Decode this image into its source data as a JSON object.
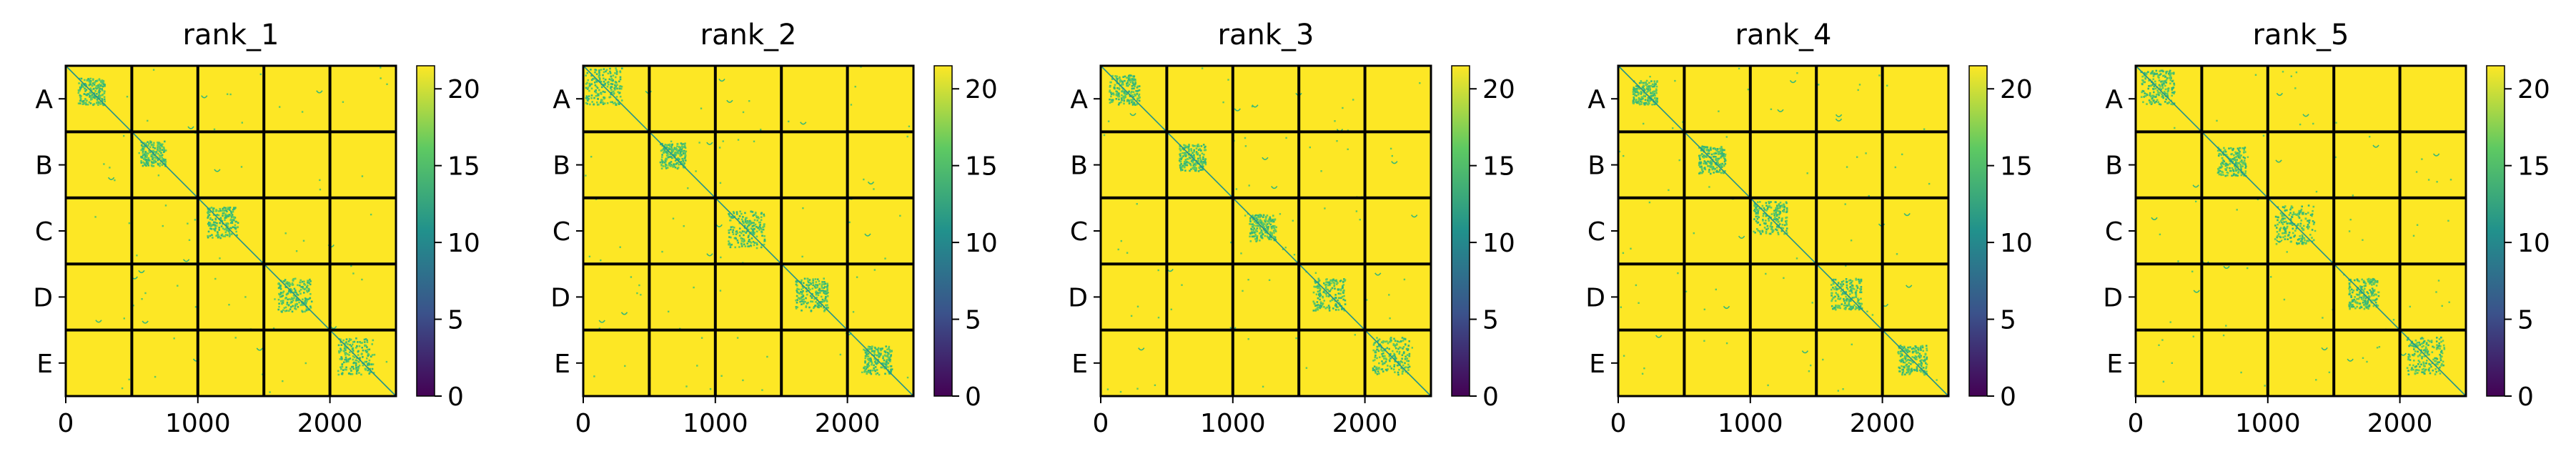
{
  "chart_data": [
    {
      "type": "heatmap",
      "title": "rank_1",
      "row_labels": [
        "A",
        "B",
        "C",
        "D",
        "E"
      ],
      "x_ticks": [
        "0",
        "1000",
        "2000"
      ],
      "x_tick_values": [
        0,
        1000,
        2000
      ],
      "xlim": [
        0,
        2500
      ],
      "ylim": [
        0,
        2500
      ],
      "block_size": 500,
      "colorbar": {
        "ticks": [
          "0",
          "5",
          "10",
          "15",
          "20"
        ],
        "tick_values": [
          0,
          5,
          10,
          15,
          20
        ],
        "range": [
          0,
          21.5
        ]
      },
      "colormap": "viridis",
      "background_value": 21.5
    },
    {
      "type": "heatmap",
      "title": "rank_2",
      "row_labels": [
        "A",
        "B",
        "C",
        "D",
        "E"
      ],
      "x_ticks": [
        "0",
        "1000",
        "2000"
      ],
      "x_tick_values": [
        0,
        1000,
        2000
      ],
      "xlim": [
        0,
        2500
      ],
      "ylim": [
        0,
        2500
      ],
      "block_size": 500,
      "colorbar": {
        "ticks": [
          "0",
          "5",
          "10",
          "15",
          "20"
        ],
        "tick_values": [
          0,
          5,
          10,
          15,
          20
        ],
        "range": [
          0,
          21.5
        ]
      },
      "colormap": "viridis",
      "background_value": 21.5
    },
    {
      "type": "heatmap",
      "title": "rank_3",
      "row_labels": [
        "A",
        "B",
        "C",
        "D",
        "E"
      ],
      "x_ticks": [
        "0",
        "1000",
        "2000"
      ],
      "x_tick_values": [
        0,
        1000,
        2000
      ],
      "xlim": [
        0,
        2500
      ],
      "ylim": [
        0,
        2500
      ],
      "block_size": 500,
      "colorbar": {
        "ticks": [
          "0",
          "5",
          "10",
          "15",
          "20"
        ],
        "tick_values": [
          0,
          5,
          10,
          15,
          20
        ],
        "range": [
          0,
          21.5
        ]
      },
      "colormap": "viridis",
      "background_value": 21.5
    },
    {
      "type": "heatmap",
      "title": "rank_4",
      "row_labels": [
        "A",
        "B",
        "C",
        "D",
        "E"
      ],
      "x_ticks": [
        "0",
        "1000",
        "2000"
      ],
      "x_tick_values": [
        0,
        1000,
        2000
      ],
      "xlim": [
        0,
        2500
      ],
      "ylim": [
        0,
        2500
      ],
      "block_size": 500,
      "colorbar": {
        "ticks": [
          "0",
          "5",
          "10",
          "15",
          "20"
        ],
        "tick_values": [
          0,
          5,
          10,
          15,
          20
        ],
        "range": [
          0,
          21.5
        ]
      },
      "colormap": "viridis",
      "background_value": 21.5
    },
    {
      "type": "heatmap",
      "title": "rank_5",
      "row_labels": [
        "A",
        "B",
        "C",
        "D",
        "E"
      ],
      "x_ticks": [
        "0",
        "1000",
        "2000"
      ],
      "x_tick_values": [
        0,
        1000,
        2000
      ],
      "xlim": [
        0,
        2500
      ],
      "ylim": [
        0,
        2500
      ],
      "block_size": 500,
      "colorbar": {
        "ticks": [
          "0",
          "5",
          "10",
          "15",
          "20"
        ],
        "tick_values": [
          0,
          5,
          10,
          15,
          20
        ],
        "range": [
          0,
          21.5
        ]
      },
      "colormap": "viridis",
      "background_value": 21.5
    }
  ],
  "colors": {
    "background_cell": "#fde725",
    "diagonal": "#21918c",
    "contact_light": "#5ec962",
    "contact_mid": "#35b779",
    "grid": "#000000",
    "colorbar_stops": [
      "#440154",
      "#3b528b",
      "#21918c",
      "#5ec962",
      "#fde725"
    ]
  }
}
